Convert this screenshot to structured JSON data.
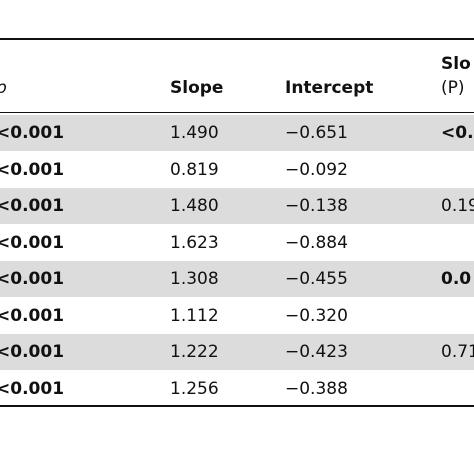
{
  "table": {
    "headers": {
      "col0": "p",
      "slope": "Slope",
      "intercept": "Intercept",
      "col3_line1": "Slo",
      "col3_line2": "(P)"
    },
    "rows": [
      {
        "p": "<0.001",
        "slope": "1.490",
        "intercept": "−0.651",
        "col3": "<0.",
        "col3_bold": true,
        "shaded": true
      },
      {
        "p": "<0.001",
        "slope": "0.819",
        "intercept": "−0.092",
        "col3": "",
        "col3_bold": false,
        "shaded": false
      },
      {
        "p": "<0.001",
        "slope": "1.480",
        "intercept": "−0.138",
        "col3": "0.19",
        "col3_bold": false,
        "shaded": true
      },
      {
        "p": "<0.001",
        "slope": "1.623",
        "intercept": "−0.884",
        "col3": "",
        "col3_bold": false,
        "shaded": false
      },
      {
        "p": "<0.001",
        "slope": "1.308",
        "intercept": "−0.455",
        "col3": "0.0",
        "col3_bold": true,
        "shaded": true
      },
      {
        "p": "<0.001",
        "slope": "1.112",
        "intercept": "−0.320",
        "col3": "",
        "col3_bold": false,
        "shaded": false
      },
      {
        "p": "<0.001",
        "slope": "1.222",
        "intercept": "−0.423",
        "col3": "0.71",
        "col3_bold": false,
        "shaded": true
      },
      {
        "p": "<0.001",
        "slope": "1.256",
        "intercept": "−0.388",
        "col3": "",
        "col3_bold": false,
        "shaded": false
      }
    ]
  }
}
